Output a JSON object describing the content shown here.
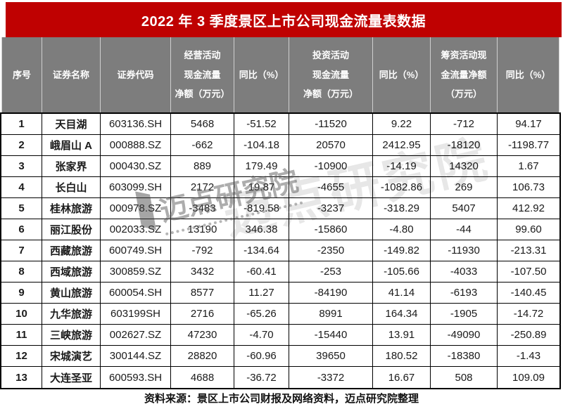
{
  "chart_data": {
    "type": "table",
    "title": "2022 年 3 季度景区上市公司现金流量表数据",
    "columns": [
      "序号",
      "证券名称",
      "证券代码",
      "经营活动现金流量净额（万元）",
      "同比（%）",
      "投资活动现金流量净额（万元）",
      "同比（%）",
      "筹资活动现金流量净额（万元）",
      "同比（%）"
    ],
    "rows": [
      [
        "1",
        "天目湖",
        "603136.SH",
        "5468",
        "-51.52",
        "-11520",
        "9.22",
        "-712",
        "94.17"
      ],
      [
        "2",
        "峨眉山 A",
        "000888.SZ",
        "-662",
        "-104.18",
        "20570",
        "2412.95",
        "-18120",
        "-1198.77"
      ],
      [
        "3",
        "张家界",
        "000430.SZ",
        "889",
        "179.49",
        "-10900",
        "-14.19",
        "14320",
        "1.67"
      ],
      [
        "4",
        "长白山",
        "603099.SH",
        "2172",
        "19.87",
        "-4655",
        "-1082.86",
        "269",
        "106.73"
      ],
      [
        "5",
        "桂林旅游",
        "000978.SZ",
        "-3483",
        "-819.58",
        "-3237",
        "-318.29",
        "5407",
        "412.92"
      ],
      [
        "6",
        "丽江股份",
        "002033.SZ",
        "13190",
        "346.38",
        "-15860",
        "-4.80",
        "-44",
        "99.60"
      ],
      [
        "7",
        "西藏旅游",
        "600749.SH",
        "-792",
        "-134.64",
        "-2350",
        "-149.82",
        "-11930",
        "-213.31"
      ],
      [
        "8",
        "西域旅游",
        "300859.SZ",
        "3432",
        "-60.41",
        "-253",
        "-105.66",
        "-4033",
        "-107.50"
      ],
      [
        "9",
        "黄山旅游",
        "600054.SH",
        "8577",
        "11.27",
        "-84190",
        "41.14",
        "-6193",
        "-140.45"
      ],
      [
        "10",
        "九华旅游",
        "603199SH",
        "2716",
        "-65.26",
        "8991",
        "164.34",
        "-1905",
        "-14.72"
      ],
      [
        "11",
        "三峡旅游",
        "002627.SZ",
        "47230",
        "-4.70",
        "-15440",
        "13.91",
        "-49090",
        "-250.89"
      ],
      [
        "12",
        "宋城演艺",
        "300144.SZ",
        "28820",
        "-60.96",
        "39650",
        "180.52",
        "-18380",
        "-1.43"
      ],
      [
        "13",
        "大连圣亚",
        "600593.SH",
        "4688",
        "-36.72",
        "-3372",
        "16.67",
        "508",
        "109.09"
      ]
    ],
    "layout": {
      "header_rows": 1,
      "grid": "black 1px cell borders, 2px outer border",
      "legend_position": "none"
    }
  },
  "header_display": [
    "序号",
    "证券名称",
    "证券代码",
    "经营活动\n现金流量\n净额（万元）",
    "同比（%）",
    "投资活动\n现金流量\n净额（万元）",
    "同比（%）",
    "筹资活动现\n金流量净额\n（万元）",
    "同比（%）"
  ],
  "watermark": {
    "large": "迈点研究院",
    "small": "迈点研究院"
  },
  "source_note": "资料来源：景区上市公司财报及网络资料，迈点研究院整理",
  "colors": {
    "title_bg": "#bf0101",
    "title_text": "#ffffff",
    "header_bg": "#7d7d7d",
    "header_text": "#ffffff",
    "body_text": "#1a1a1a",
    "border": "#000000"
  }
}
